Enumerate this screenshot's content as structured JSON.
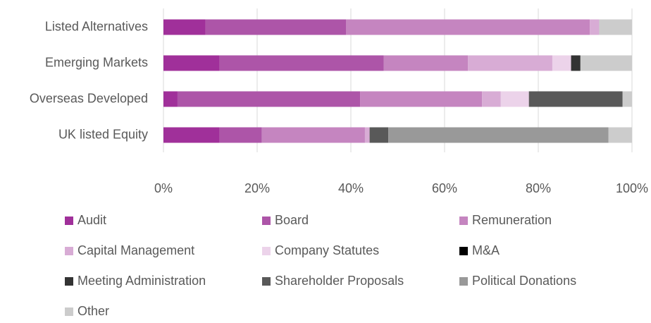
{
  "chart_data": {
    "type": "stacked-barh",
    "categories": [
      "Listed Alternatives",
      "Emerging Markets",
      "Overseas Developed",
      "UK listed Equity"
    ],
    "series": [
      {
        "name": "Audit",
        "color": "#a0309a",
        "values": [
          9,
          12,
          3,
          12
        ]
      },
      {
        "name": "Board",
        "color": "#ad55a8",
        "values": [
          30,
          35,
          39,
          9
        ]
      },
      {
        "name": "Remuneration",
        "color": "#c585c0",
        "values": [
          52,
          18,
          26,
          22
        ]
      },
      {
        "name": "Capital Management",
        "color": "#d8acd5",
        "values": [
          2,
          18,
          4,
          1
        ]
      },
      {
        "name": "Company Statutes",
        "color": "#ecd3ea",
        "values": [
          0,
          4,
          6,
          0
        ]
      },
      {
        "name": "M&A",
        "color": "#000000",
        "values": [
          0,
          0,
          0,
          0
        ]
      },
      {
        "name": "Meeting Administration",
        "color": "#333333",
        "values": [
          0,
          2,
          0,
          0
        ]
      },
      {
        "name": "Shareholder Proposals",
        "color": "#595959",
        "values": [
          0,
          0,
          20,
          4
        ]
      },
      {
        "name": "Political Donations",
        "color": "#999999",
        "values": [
          0,
          0,
          0,
          47
        ]
      },
      {
        "name": "Other",
        "color": "#cccccc",
        "values": [
          7,
          11,
          2,
          5
        ]
      }
    ],
    "xlim": [
      0,
      100
    ],
    "xticks": [
      {
        "value": 0,
        "label": "0%"
      },
      {
        "value": 20,
        "label": "20%"
      },
      {
        "value": 40,
        "label": "40%"
      },
      {
        "value": 60,
        "label": "60%"
      },
      {
        "value": 80,
        "label": "80%"
      },
      {
        "value": 100,
        "label": "100%"
      }
    ],
    "grid": true,
    "legend": "bottom"
  }
}
